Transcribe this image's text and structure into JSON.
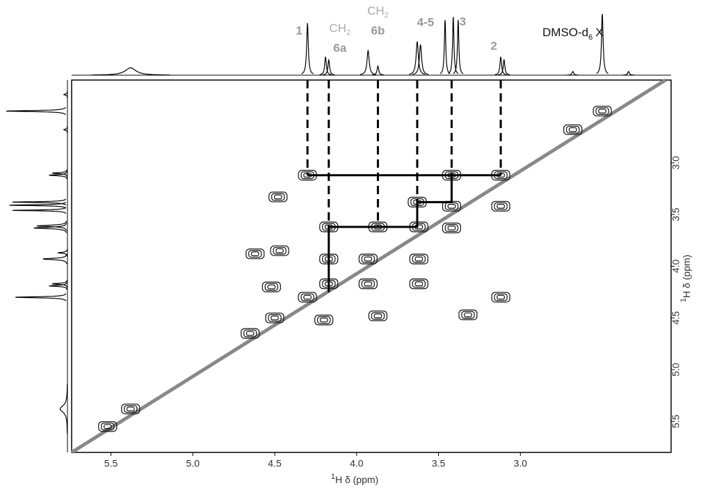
{
  "chart_data": {
    "type": "cosy",
    "xlim": [
      5.74,
      2.08
    ],
    "ylim": [
      2.2,
      5.8
    ],
    "xticks": [
      {
        "value": 5.5,
        "label": "5.5"
      },
      {
        "value": 5,
        "label": "5.0"
      },
      {
        "value": 4.5,
        "label": "4.5"
      },
      {
        "value": 4,
        "label": "4.0"
      },
      {
        "value": 3.5,
        "label": "3.5"
      },
      {
        "value": 3,
        "label": "3.0"
      }
    ],
    "yticks": [
      {
        "value": 3,
        "label": "3.0"
      },
      {
        "value": 3.5,
        "label": "3.5"
      },
      {
        "value": 4,
        "label": "4.0"
      },
      {
        "value": 4.5,
        "label": "4.5"
      },
      {
        "value": 5,
        "label": "5.0"
      },
      {
        "value": 5.5,
        "label": "5.5"
      }
    ],
    "x_label": {
      "sup": "1",
      "text": "H δ (ppm)"
    },
    "y_label": {
      "sup": "1",
      "text": "H δ (ppm)"
    },
    "solvent_label": {
      "text": "DMSO-d",
      "sub": "6",
      "mark": "X"
    },
    "assignments": [
      {
        "label": "1",
        "x": 4.3,
        "y": 3.12
      },
      {
        "prefix": "CH",
        "sub": "2",
        "label": "6a",
        "x": 4.17,
        "y": 3.62
      },
      {
        "prefix": "CH",
        "sub": "2",
        "label": "6b",
        "x": 3.87,
        "y": 3.62
      },
      {
        "label": "4-5",
        "x": 3.63,
        "y": 3.38
      },
      {
        "label": "3",
        "x": 3.42,
        "y": 3.12
      },
      {
        "label": "2",
        "x": 3.12,
        "y": 3.12
      }
    ],
    "walk": {
      "x": [
        4.3,
        3.12,
        3.42,
        3.42,
        3.63,
        3.63,
        4.17,
        4.17
      ],
      "y": [
        3.12,
        3.12,
        3.12,
        3.38,
        3.38,
        3.62,
        3.62,
        4.25
      ]
    },
    "projection": {
      "x": [
        5.38,
        4.3,
        4.19,
        4.17,
        3.93,
        3.87,
        3.63,
        3.61,
        3.46,
        3.41,
        3.38,
        3.12,
        3.1,
        2.68,
        2.5,
        2.34
      ],
      "heights": [
        0.12,
        0.85,
        0.3,
        0.25,
        0.4,
        0.15,
        0.55,
        0.5,
        0.9,
        0.95,
        0.9,
        0.3,
        0.25,
        0.06,
        1.0,
        0.06
      ],
      "widths": [
        0.04,
        0.006,
        0.006,
        0.006,
        0.008,
        0.006,
        0.008,
        0.008,
        0.005,
        0.005,
        0.005,
        0.006,
        0.006,
        0.006,
        0.006,
        0.006
      ]
    },
    "peaks": {
      "x": [
        5.52,
        5.38,
        4.65,
        4.5,
        4.3,
        4.17,
        3.93,
        3.62,
        3.42,
        3.12,
        2.5,
        2.68,
        4.3,
        3.12,
        3.42,
        3.12,
        3.63,
        3.42,
        4.17,
        3.62,
        3.87,
        3.62,
        4.17,
        3.93,
        4.48,
        4.52,
        4.62,
        4.47,
        3.32,
        3.87,
        4.2
      ],
      "y": [
        5.55,
        5.38,
        4.65,
        4.5,
        4.3,
        4.17,
        3.93,
        3.62,
        3.42,
        3.12,
        2.5,
        2.68,
        3.12,
        4.3,
        3.12,
        3.42,
        3.38,
        3.63,
        3.62,
        4.17,
        3.62,
        3.93,
        3.93,
        4.17,
        3.33,
        4.2,
        3.88,
        3.85,
        4.47,
        4.48,
        4.52
      ]
    },
    "diagonal": true
  }
}
